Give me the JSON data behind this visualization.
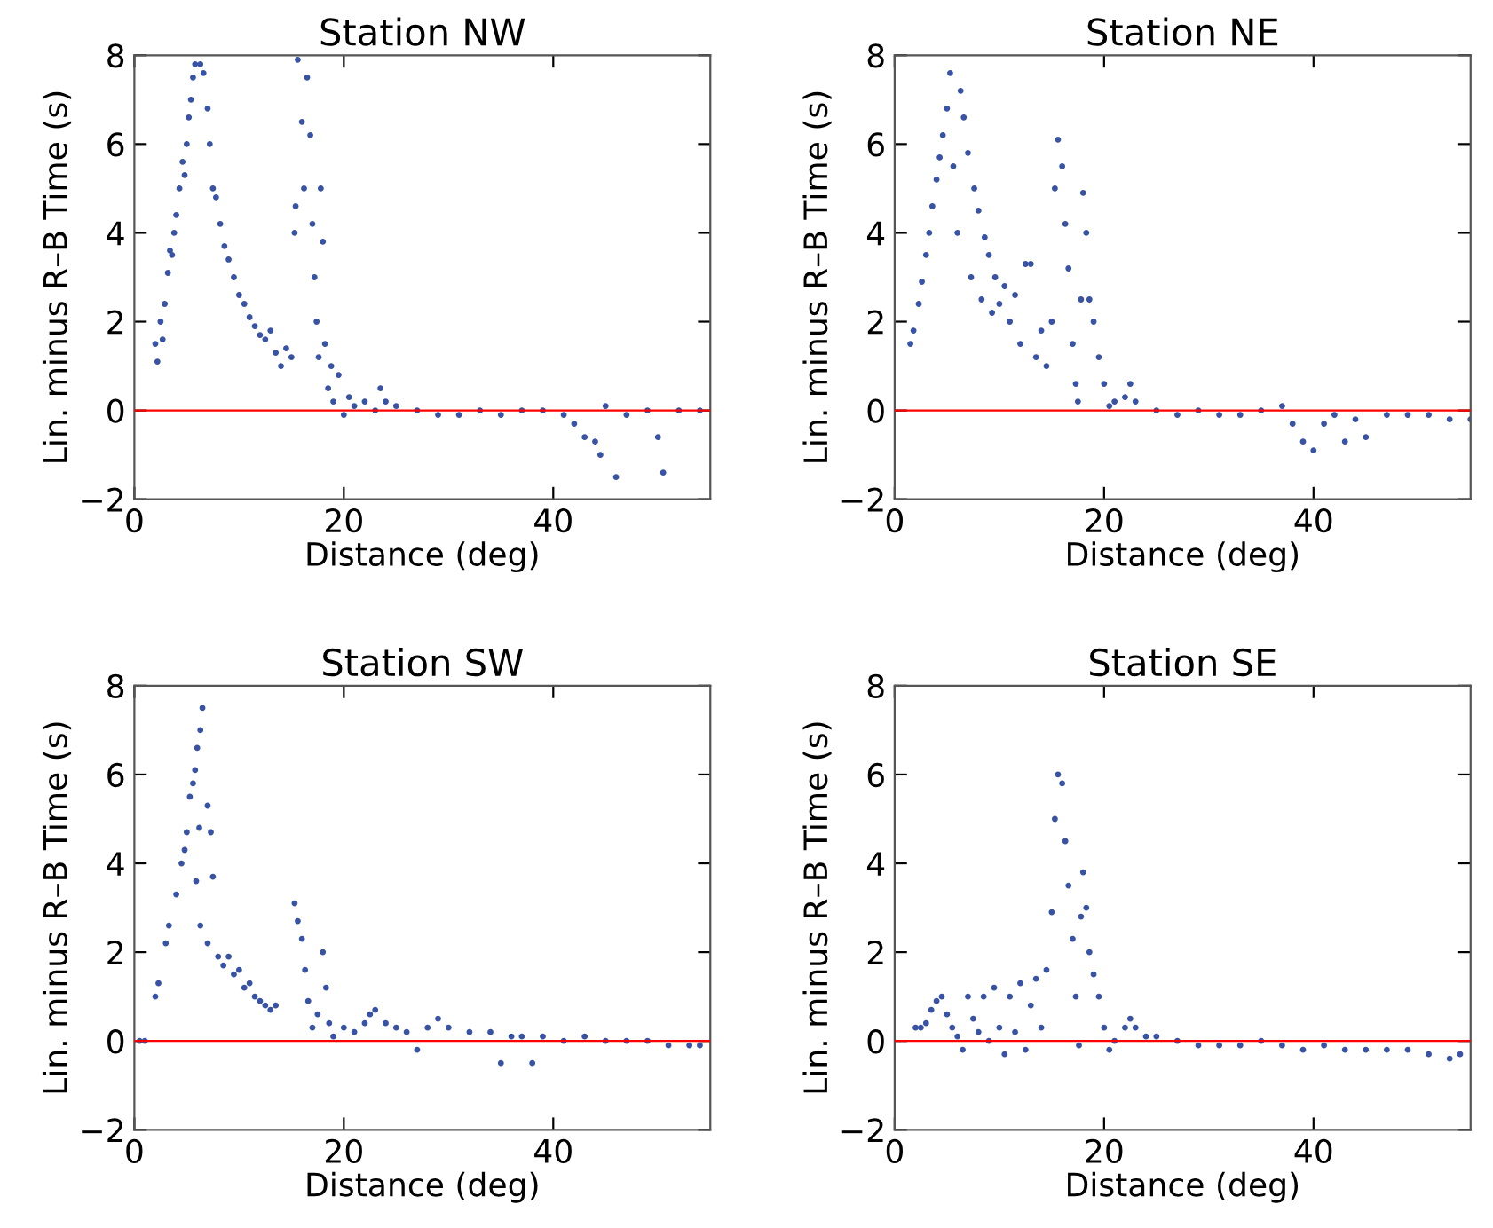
{
  "chart_data": [
    {
      "type": "scatter",
      "title": "Station NW",
      "xlabel": "Distance (deg)",
      "ylabel": "Lin. minus R–B Time (s)",
      "xlim": [
        0,
        55
      ],
      "ylim": [
        -2,
        8
      ],
      "xticks": [
        0,
        20,
        40
      ],
      "yticks": [
        -2,
        0,
        2,
        4,
        6,
        8
      ],
      "marker": "circle",
      "grid": false,
      "ref_lines": [
        {
          "axis": "y",
          "value": 0,
          "color": "#ff0000"
        }
      ],
      "series": [
        {
          "color": "#3953a4",
          "x": [
            2,
            2.2,
            2.5,
            2.7,
            2.9,
            3.2,
            3.4,
            3.6,
            3.8,
            4.0,
            4.3,
            4.6,
            4.8,
            5.0,
            5.2,
            5.4,
            5.6,
            5.8,
            6.3,
            6.6,
            7.0,
            7.2,
            7.5,
            7.8,
            8.2,
            8.6,
            9.0,
            9.5,
            10,
            10.5,
            11,
            11.5,
            12,
            12.5,
            13,
            13.5,
            14,
            14.5,
            15,
            15.3,
            15.4,
            15.6,
            16,
            16.2,
            16.5,
            16.8,
            17,
            17.2,
            17.4,
            17.6,
            17.8,
            18,
            18.2,
            18.5,
            18.8,
            19,
            19.5,
            20,
            20.5,
            21,
            22,
            23,
            23.5,
            24,
            25,
            27,
            29,
            31,
            33,
            35,
            37,
            39,
            41,
            42,
            43,
            44,
            44.5,
            45,
            46,
            47,
            49,
            50,
            50.5,
            52,
            54
          ],
          "values": [
            1.5,
            1.1,
            2.0,
            1.6,
            2.4,
            3.1,
            3.6,
            3.5,
            4.0,
            4.4,
            5.0,
            5.6,
            5.3,
            6.0,
            6.6,
            7.0,
            7.5,
            7.8,
            7.8,
            7.6,
            6.8,
            6.0,
            5.0,
            4.8,
            4.2,
            3.7,
            3.4,
            3.0,
            2.6,
            2.4,
            2.1,
            1.9,
            1.7,
            1.6,
            1.8,
            1.3,
            1.0,
            1.4,
            1.2,
            4.0,
            4.6,
            7.9,
            6.5,
            5.0,
            7.5,
            6.2,
            4.2,
            3.0,
            2.0,
            1.2,
            5.0,
            3.8,
            1.5,
            0.5,
            1.0,
            0.2,
            0.8,
            -0.1,
            0.3,
            0.1,
            0.2,
            0.0,
            0.5,
            0.2,
            0.1,
            0.0,
            -0.1,
            -0.1,
            0.0,
            -0.1,
            0.0,
            0.0,
            -0.1,
            -0.3,
            -0.6,
            -0.7,
            -1.0,
            0.1,
            -1.5,
            -0.1,
            0.0,
            -0.6,
            -1.4,
            0.0,
            0.0
          ]
        }
      ]
    },
    {
      "type": "scatter",
      "title": "Station NE",
      "xlabel": "Distance (deg)",
      "ylabel": "Lin. minus R–B Time (s)",
      "xlim": [
        0,
        55
      ],
      "ylim": [
        -2,
        8
      ],
      "xticks": [
        0,
        20,
        40
      ],
      "yticks": [
        -2,
        0,
        2,
        4,
        6,
        8
      ],
      "marker": "circle",
      "grid": false,
      "ref_lines": [
        {
          "axis": "y",
          "value": 0,
          "color": "#ff0000"
        }
      ],
      "series": [
        {
          "color": "#3953a4",
          "x": [
            1.5,
            1.8,
            2.3,
            2.6,
            3,
            3.3,
            3.6,
            4,
            4.3,
            4.6,
            5,
            5.3,
            5.6,
            6,
            6.3,
            6.6,
            7,
            7.3,
            7.6,
            8,
            8.3,
            8.6,
            9,
            9.3,
            9.6,
            10,
            10.5,
            11,
            11.5,
            12,
            12.5,
            13,
            13.5,
            14,
            14.5,
            15,
            15.3,
            15.6,
            16,
            16.3,
            16.6,
            17,
            17.3,
            17.5,
            17.8,
            18,
            18.3,
            18.6,
            19,
            19.5,
            20,
            20.5,
            21,
            22,
            22.5,
            23,
            25,
            27,
            29,
            31,
            33,
            35,
            37,
            38,
            39,
            40,
            41,
            42,
            43,
            44,
            45,
            47,
            49,
            51,
            53,
            55
          ],
          "values": [
            1.5,
            1.8,
            2.4,
            2.9,
            3.5,
            4.0,
            4.6,
            5.2,
            5.7,
            6.2,
            6.8,
            7.6,
            5.5,
            4.0,
            7.2,
            6.6,
            5.8,
            3.0,
            5.0,
            4.5,
            2.5,
            3.9,
            3.5,
            2.2,
            3.0,
            2.4,
            2.8,
            2.0,
            2.6,
            1.5,
            3.3,
            3.3,
            1.2,
            1.8,
            1.0,
            2.0,
            5.0,
            6.1,
            5.5,
            4.2,
            3.2,
            1.5,
            0.6,
            0.2,
            2.5,
            4.9,
            4.0,
            2.5,
            2.0,
            1.2,
            0.6,
            0.1,
            0.2,
            0.3,
            0.6,
            0.2,
            0.0,
            -0.1,
            0.0,
            -0.1,
            -0.1,
            0.0,
            0.1,
            -0.3,
            -0.7,
            -0.9,
            -0.3,
            -0.1,
            -0.7,
            -0.2,
            -0.6,
            -0.1,
            -0.1,
            -0.1,
            -0.2,
            -0.2
          ]
        }
      ]
    },
    {
      "type": "scatter",
      "title": "Station SW",
      "xlabel": "Distance (deg)",
      "ylabel": "Lin. minus R–B Time (s)",
      "xlim": [
        0,
        55
      ],
      "ylim": [
        -2,
        8
      ],
      "xticks": [
        0,
        20,
        40
      ],
      "yticks": [
        -2,
        0,
        2,
        4,
        6,
        8
      ],
      "marker": "circle",
      "grid": false,
      "ref_lines": [
        {
          "axis": "y",
          "value": 0,
          "color": "#ff0000"
        }
      ],
      "series": [
        {
          "color": "#3953a4",
          "x": [
            0.5,
            1,
            2,
            2.3,
            3,
            3.3,
            4,
            4.5,
            4.8,
            5,
            5.3,
            5.6,
            5.8,
            6.0,
            6.3,
            6.5,
            6.2,
            5.9,
            6.3,
            7,
            7,
            7.3,
            7.5,
            8,
            8.5,
            9,
            9.5,
            10,
            10.5,
            11,
            11.5,
            12,
            12.5,
            13,
            13.5,
            15.3,
            15.6,
            16,
            16.3,
            16.6,
            17,
            17.5,
            18,
            18.3,
            18.6,
            19,
            20,
            21,
            22,
            22.5,
            23,
            24,
            25,
            26,
            27,
            28,
            29,
            30,
            32,
            34,
            35,
            36,
            37,
            38,
            39,
            41,
            43,
            45,
            47,
            49,
            51,
            53,
            54
          ],
          "values": [
            0,
            0,
            1.0,
            1.3,
            2.2,
            2.6,
            3.3,
            4.0,
            4.3,
            4.7,
            5.5,
            5.8,
            6.1,
            6.6,
            7.0,
            7.5,
            4.8,
            3.6,
            2.6,
            5.3,
            2.2,
            4.7,
            3.7,
            1.9,
            1.7,
            1.9,
            1.5,
            1.6,
            1.2,
            1.3,
            1.0,
            0.9,
            0.8,
            0.7,
            0.8,
            3.1,
            2.7,
            2.3,
            1.6,
            0.9,
            0.3,
            0.6,
            2.0,
            1.2,
            0.4,
            0.1,
            0.3,
            0.2,
            0.4,
            0.6,
            0.7,
            0.4,
            0.3,
            0.2,
            -0.2,
            0.3,
            0.5,
            0.3,
            0.2,
            0.2,
            -0.5,
            0.1,
            0.1,
            -0.5,
            0.1,
            0.0,
            0.1,
            0.0,
            0.0,
            0.0,
            -0.1,
            -0.1,
            -0.1
          ]
        }
      ]
    },
    {
      "type": "scatter",
      "title": "Station SE",
      "xlabel": "Distance (deg)",
      "ylabel": "Lin. minus R–B Time (s)",
      "xlim": [
        0,
        55
      ],
      "ylim": [
        -2,
        8
      ],
      "xticks": [
        0,
        20,
        40
      ],
      "yticks": [
        -2,
        0,
        2,
        4,
        6,
        8
      ],
      "marker": "circle",
      "grid": false,
      "ref_lines": [
        {
          "axis": "y",
          "value": 0,
          "color": "#ff0000"
        }
      ],
      "series": [
        {
          "color": "#3953a4",
          "x": [
            2,
            2.5,
            3,
            3.5,
            4,
            4.5,
            5,
            5.5,
            6,
            6.5,
            7,
            7.5,
            8,
            8.5,
            9,
            9.5,
            10,
            10.5,
            11,
            11.5,
            12,
            12.5,
            13,
            13.5,
            14,
            14.5,
            15,
            15.3,
            15.6,
            16,
            16.3,
            16.6,
            17,
            17.3,
            17.6,
            17.8,
            18,
            18.3,
            18.6,
            19,
            19.5,
            20,
            20.5,
            21,
            22,
            22.5,
            23,
            24,
            25,
            27,
            29,
            31,
            33,
            35,
            37,
            39,
            41,
            43,
            45,
            47,
            49,
            51,
            53,
            54
          ],
          "values": [
            0.3,
            0.3,
            0.4,
            0.7,
            0.9,
            1.0,
            0.6,
            0.3,
            0.1,
            -0.2,
            1.0,
            0.5,
            0.2,
            1.0,
            0.0,
            1.2,
            0.3,
            -0.3,
            1.0,
            0.2,
            1.3,
            -0.2,
            0.8,
            1.4,
            0.3,
            1.6,
            2.9,
            5.0,
            6.0,
            5.8,
            4.5,
            3.5,
            2.3,
            1.0,
            -0.1,
            2.8,
            3.8,
            3.0,
            2.0,
            1.5,
            1.0,
            0.3,
            -0.2,
            0.0,
            0.3,
            0.5,
            0.3,
            0.1,
            0.1,
            0.0,
            -0.1,
            -0.1,
            -0.1,
            0.0,
            -0.1,
            -0.2,
            -0.1,
            -0.2,
            -0.2,
            -0.2,
            -0.2,
            -0.3,
            -0.4,
            -0.3
          ]
        }
      ]
    }
  ]
}
